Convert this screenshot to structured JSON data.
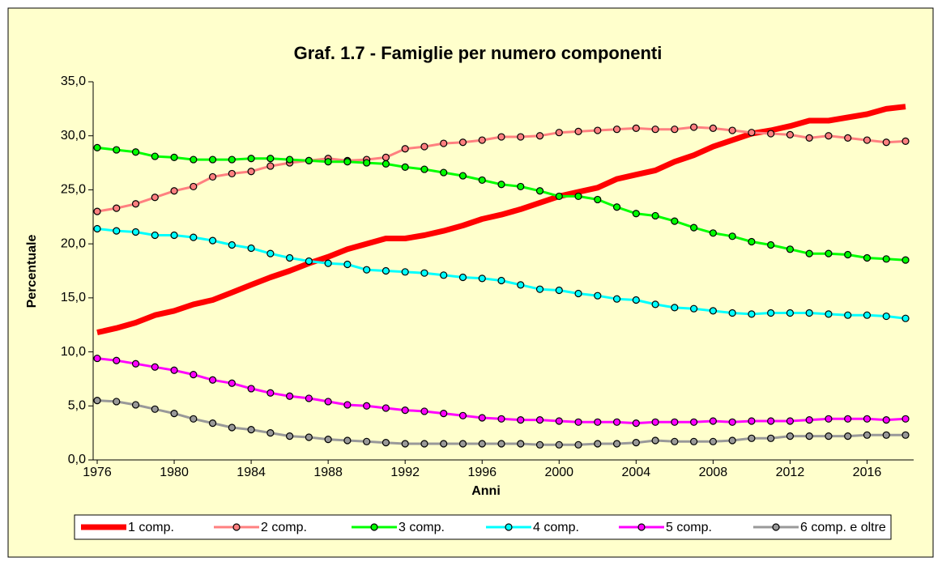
{
  "chart_data": {
    "type": "line",
    "title": "Graf. 1.7 - Famiglie per numero componenti",
    "x_label": "Anni",
    "y_label": "Percentuale",
    "x": [
      1976,
      1977,
      1978,
      1979,
      1980,
      1981,
      1982,
      1983,
      1984,
      1985,
      1986,
      1987,
      1988,
      1989,
      1990,
      1991,
      1992,
      1993,
      1994,
      1995,
      1996,
      1997,
      1998,
      1999,
      2000,
      2001,
      2002,
      2003,
      2004,
      2005,
      2006,
      2007,
      2008,
      2009,
      2010,
      2011,
      2012,
      2013,
      2014,
      2015,
      2016,
      2017,
      2018
    ],
    "xlim": [
      1976,
      2018
    ],
    "xticks": [
      1976,
      1980,
      1984,
      1988,
      1992,
      1996,
      2000,
      2004,
      2008,
      2012,
      2016
    ],
    "ylim": [
      0,
      35
    ],
    "yticks": [
      {
        "value": 0,
        "label": "0,0"
      },
      {
        "value": 5,
        "label": "5,0"
      },
      {
        "value": 10,
        "label": "10,0"
      },
      {
        "value": 15,
        "label": "15,0"
      },
      {
        "value": 20,
        "label": "20,0"
      },
      {
        "value": 25,
        "label": "25,0"
      },
      {
        "value": 30,
        "label": "30,0"
      },
      {
        "value": 35,
        "label": "35,0"
      }
    ],
    "grid": false,
    "legend": "bottom",
    "series": [
      {
        "name": "1 comp.",
        "color": "#ff0000",
        "markers": false,
        "values": [
          11.8,
          12.2,
          12.7,
          13.4,
          13.8,
          14.4,
          14.8,
          15.5,
          16.2,
          16.9,
          17.5,
          18.2,
          18.8,
          19.5,
          20.0,
          20.5,
          20.5,
          20.8,
          21.2,
          21.7,
          22.3,
          22.7,
          23.2,
          23.8,
          24.4,
          24.8,
          25.2,
          26.0,
          26.4,
          26.8,
          27.6,
          28.2,
          29.0,
          29.6,
          30.2,
          30.5,
          30.9,
          31.4,
          31.4,
          31.7,
          32.0,
          32.5,
          32.7
        ]
      },
      {
        "name": "2 comp.",
        "color": "#ff8080",
        "markers": true,
        "values": [
          23.0,
          23.3,
          23.7,
          24.3,
          24.9,
          25.3,
          26.2,
          26.5,
          26.7,
          27.2,
          27.5,
          27.7,
          27.9,
          27.7,
          27.8,
          28.0,
          28.8,
          29.0,
          29.3,
          29.4,
          29.6,
          29.9,
          29.9,
          30.0,
          30.3,
          30.4,
          30.5,
          30.6,
          30.7,
          30.6,
          30.6,
          30.8,
          30.7,
          30.5,
          30.3,
          30.2,
          30.1,
          29.8,
          30.0,
          29.8,
          29.6,
          29.4,
          29.5
        ]
      },
      {
        "name": "3 comp.",
        "color": "#00ff00",
        "markers": true,
        "values": [
          28.9,
          28.7,
          28.5,
          28.1,
          28.0,
          27.8,
          27.8,
          27.8,
          27.9,
          27.9,
          27.8,
          27.7,
          27.6,
          27.6,
          27.5,
          27.4,
          27.1,
          26.9,
          26.6,
          26.3,
          25.9,
          25.5,
          25.3,
          24.9,
          24.4,
          24.4,
          24.1,
          23.4,
          22.8,
          22.6,
          22.1,
          21.5,
          21.0,
          20.7,
          20.2,
          19.9,
          19.5,
          19.1,
          19.1,
          19.0,
          18.7,
          18.6,
          18.5
        ]
      },
      {
        "name": "4 comp.",
        "color": "#00ffff",
        "markers": true,
        "values": [
          21.4,
          21.2,
          21.1,
          20.8,
          20.8,
          20.6,
          20.3,
          19.9,
          19.6,
          19.1,
          18.7,
          18.4,
          18.2,
          18.1,
          17.6,
          17.5,
          17.4,
          17.3,
          17.1,
          16.9,
          16.8,
          16.6,
          16.2,
          15.8,
          15.7,
          15.4,
          15.2,
          14.9,
          14.8,
          14.4,
          14.1,
          14.0,
          13.8,
          13.6,
          13.5,
          13.6,
          13.6,
          13.6,
          13.5,
          13.4,
          13.4,
          13.3,
          13.1
        ]
      },
      {
        "name": "5 comp.",
        "color": "#ff00ff",
        "markers": true,
        "values": [
          9.4,
          9.2,
          8.9,
          8.6,
          8.3,
          7.9,
          7.4,
          7.1,
          6.6,
          6.2,
          5.9,
          5.7,
          5.4,
          5.1,
          5.0,
          4.8,
          4.6,
          4.5,
          4.3,
          4.1,
          3.9,
          3.8,
          3.7,
          3.7,
          3.6,
          3.5,
          3.5,
          3.5,
          3.4,
          3.5,
          3.5,
          3.5,
          3.6,
          3.5,
          3.6,
          3.6,
          3.6,
          3.7,
          3.8,
          3.8,
          3.8,
          3.7,
          3.8
        ]
      },
      {
        "name": "6 comp. e oltre",
        "color": "#999999",
        "markers": true,
        "values": [
          5.5,
          5.4,
          5.1,
          4.7,
          4.3,
          3.8,
          3.4,
          3.0,
          2.8,
          2.5,
          2.2,
          2.1,
          1.9,
          1.8,
          1.7,
          1.6,
          1.5,
          1.5,
          1.5,
          1.5,
          1.5,
          1.5,
          1.5,
          1.4,
          1.4,
          1.4,
          1.5,
          1.5,
          1.6,
          1.8,
          1.7,
          1.7,
          1.7,
          1.8,
          2.0,
          2.0,
          2.2,
          2.2,
          2.2,
          2.2,
          2.3,
          2.3,
          2.3
        ]
      }
    ]
  }
}
